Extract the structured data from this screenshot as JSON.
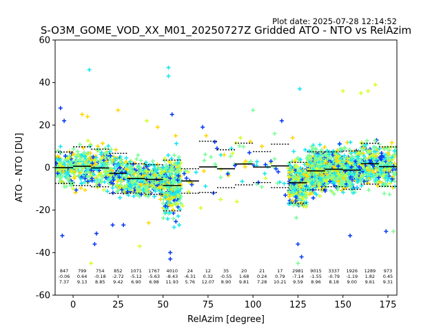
{
  "plot_date": "Plot date: 2025-07-28 12:14:52",
  "chart_data": {
    "type": "scatter",
    "title": "S-O3M_GOME_VOD_XX_M01_20250727Z Gridded ATO - NTO vs RelAzim",
    "xlabel": "RelAzim [degree]",
    "ylabel": "ATO - NTO [DU]",
    "xlim": [
      -10,
      180
    ],
    "ylim": [
      -60,
      60
    ],
    "xticks": [
      0,
      25,
      50,
      75,
      100,
      125,
      150,
      175
    ],
    "yticks": [
      -60,
      -40,
      -20,
      0,
      20,
      40,
      60
    ],
    "grid": false,
    "legend": "none",
    "colors": {
      "dense": "#7cfc9a",
      "cyan": "#17e6f0",
      "yellow": "#ffd700",
      "yellowgreen": "#d4ff2a",
      "blue": "#0a3cf5",
      "mean_line": "#000000"
    },
    "bins": [
      {
        "center": -5,
        "count": "847",
        "mean": "-0.06",
        "std": "7.37"
      },
      {
        "center": 5,
        "count": "799",
        "mean": "0.64",
        "std": "9.13"
      },
      {
        "center": 15,
        "count": "754",
        "mean": "-0.18",
        "std": "8.85"
      },
      {
        "center": 25,
        "count": "852",
        "mean": "-2.72",
        "std": "9.42"
      },
      {
        "center": 35,
        "count": "1071",
        "mean": "-5.12",
        "std": "6.90"
      },
      {
        "center": 45,
        "count": "1767",
        "mean": "-5.63",
        "std": "6.98"
      },
      {
        "center": 55,
        "count": "4010",
        "mean": "-8.43",
        "std": "11.93"
      },
      {
        "center": 65,
        "count": "24",
        "mean": "-6.31",
        "std": "5.76"
      },
      {
        "center": 75,
        "count": "12",
        "mean": "0.32",
        "std": "12.07"
      },
      {
        "center": 85,
        "count": "35",
        "mean": "-0.55",
        "std": "8.90"
      },
      {
        "center": 95,
        "count": "20",
        "mean": "1.68",
        "std": "9.81"
      },
      {
        "center": 105,
        "count": "21",
        "mean": "0.24",
        "std": "7.28"
      },
      {
        "center": 115,
        "count": "17",
        "mean": "0.79",
        "std": "10.21"
      },
      {
        "center": 125,
        "count": "2981",
        "mean": "-7.14",
        "std": "9.59"
      },
      {
        "center": 135,
        "count": "9015",
        "mean": "-1.55",
        "std": "8.96"
      },
      {
        "center": 145,
        "count": "3337",
        "mean": "-0.79",
        "std": "8.18"
      },
      {
        "center": 155,
        "count": "1926",
        "mean": "-1.19",
        "std": "9.00"
      },
      {
        "center": 165,
        "count": "1289",
        "mean": "1.82",
        "std": "9.61"
      },
      {
        "center": 175,
        "count": "973",
        "mean": "0.45",
        "std": "9.31"
      }
    ],
    "outliers": [
      {
        "x": -7,
        "y": 28,
        "c": "blue"
      },
      {
        "x": -5,
        "y": 22,
        "c": "blue"
      },
      {
        "x": -6,
        "y": -32,
        "c": "blue"
      },
      {
        "x": 5,
        "y": 25,
        "c": "yellow"
      },
      {
        "x": 8,
        "y": 24,
        "c": "yellow"
      },
      {
        "x": 9,
        "y": 46,
        "c": "cyan"
      },
      {
        "x": 10,
        "y": -45,
        "c": "yellowgreen"
      },
      {
        "x": 12,
        "y": -36,
        "c": "blue"
      },
      {
        "x": 13,
        "y": -31,
        "c": "blue"
      },
      {
        "x": 22,
        "y": -27,
        "c": "blue"
      },
      {
        "x": 25,
        "y": 27,
        "c": "yellow"
      },
      {
        "x": 28,
        "y": -27,
        "c": "blue"
      },
      {
        "x": 37,
        "y": -37,
        "c": "yellowgreen"
      },
      {
        "x": 42,
        "y": -26,
        "c": "yellow"
      },
      {
        "x": 53,
        "y": 47,
        "c": "cyan"
      },
      {
        "x": 53,
        "y": 43,
        "c": "cyan"
      },
      {
        "x": 54,
        "y": -40,
        "c": "blue"
      },
      {
        "x": 54,
        "y": -43,
        "c": "blue"
      },
      {
        "x": 55,
        "y": 25,
        "c": "blue"
      },
      {
        "x": 57,
        "y": 15,
        "c": "yellow"
      },
      {
        "x": 59,
        "y": -27,
        "c": "cyan"
      },
      {
        "x": 61,
        "y": -18,
        "c": "yellowgreen"
      },
      {
        "x": 63,
        "y": -5,
        "c": "blue"
      },
      {
        "x": 66,
        "y": -8,
        "c": "blue"
      },
      {
        "x": 71,
        "y": -19,
        "c": "yellowgreen"
      },
      {
        "x": 72,
        "y": 19,
        "c": "blue"
      },
      {
        "x": 74,
        "y": 15,
        "c": "yellow"
      },
      {
        "x": 78,
        "y": -12,
        "c": "blue"
      },
      {
        "x": 80,
        "y": 9,
        "c": "blue"
      },
      {
        "x": 82,
        "y": -15,
        "c": "yellowgreen"
      },
      {
        "x": 84,
        "y": 6,
        "c": "yellow"
      },
      {
        "x": 86,
        "y": -3,
        "c": "blue"
      },
      {
        "x": 88,
        "y": 9,
        "c": "cyan"
      },
      {
        "x": 90,
        "y": 1,
        "c": "blue"
      },
      {
        "x": 91,
        "y": -16,
        "c": "yellowgreen"
      },
      {
        "x": 93,
        "y": 14,
        "c": "yellowgreen"
      },
      {
        "x": 95,
        "y": 2,
        "c": "yellowgreen"
      },
      {
        "x": 96,
        "y": 3,
        "c": "yellow"
      },
      {
        "x": 98,
        "y": 7,
        "c": "blue"
      },
      {
        "x": 100,
        "y": 27,
        "c": "dense"
      },
      {
        "x": 102,
        "y": 1,
        "c": "cyan"
      },
      {
        "x": 103,
        "y": -7,
        "c": "blue"
      },
      {
        "x": 105,
        "y": 10,
        "c": "yellow"
      },
      {
        "x": 107,
        "y": -5,
        "c": "yellowgreen"
      },
      {
        "x": 110,
        "y": 3,
        "c": "blue"
      },
      {
        "x": 112,
        "y": 16,
        "c": "dense"
      },
      {
        "x": 114,
        "y": -2,
        "c": "blue"
      },
      {
        "x": 116,
        "y": 22,
        "c": "blue"
      },
      {
        "x": 118,
        "y": -13,
        "c": "blue"
      },
      {
        "x": 120,
        "y": -4,
        "c": "yellowgreen"
      },
      {
        "x": 122,
        "y": 14,
        "c": "yellow"
      },
      {
        "x": 126,
        "y": 37,
        "c": "cyan"
      },
      {
        "x": 125,
        "y": -36,
        "c": "blue"
      },
      {
        "x": 125,
        "y": -45,
        "c": "dense"
      },
      {
        "x": 127,
        "y": -42,
        "c": "blue"
      },
      {
        "x": 150,
        "y": 36,
        "c": "yellowgreen"
      },
      {
        "x": 154,
        "y": -32,
        "c": "blue"
      },
      {
        "x": 160,
        "y": 35,
        "c": "yellowgreen"
      },
      {
        "x": 164,
        "y": 36,
        "c": "yellowgreen"
      },
      {
        "x": 168,
        "y": 39,
        "c": "yellowgreen"
      },
      {
        "x": 174,
        "y": -30,
        "c": "blue"
      },
      {
        "x": 178,
        "y": -30,
        "c": "dense"
      },
      {
        "x": 41,
        "y": 22,
        "c": "yellowgreen"
      },
      {
        "x": 47,
        "y": 19,
        "c": "yellow"
      }
    ]
  }
}
